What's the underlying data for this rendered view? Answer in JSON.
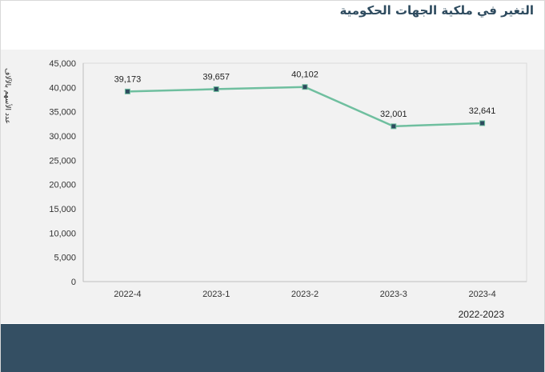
{
  "chart_data": {
    "type": "line",
    "title": "التغير في ملكية الجهات الحكومية",
    "ylabel": "عدد الأسهم بالآلاف",
    "xlabel": "2022-2023",
    "categories": [
      "2022-4",
      "2023-1",
      "2023-2",
      "2023-3",
      "2023-4"
    ],
    "series": [
      {
        "values": [
          39173,
          39657,
          40102,
          32001,
          32641
        ],
        "labels": [
          "39,173",
          "39,657",
          "40,102",
          "32,001",
          "32,641"
        ],
        "color": "#6fbf9f",
        "marker_color": "#2d4a5e"
      }
    ],
    "ylim": [
      0,
      45000
    ],
    "yticks": [
      0,
      5000,
      10000,
      15000,
      20000,
      25000,
      30000,
      35000,
      40000,
      45000
    ],
    "ytick_labels": [
      "0",
      "5,000",
      "10,000",
      "15,000",
      "20,000",
      "25,000",
      "30,000",
      "35,000",
      "40,000",
      "45,000"
    ],
    "grid": false,
    "legend": "none"
  },
  "colors": {
    "header_text": "#2d4a5e",
    "footer_bar": "#344f63"
  }
}
